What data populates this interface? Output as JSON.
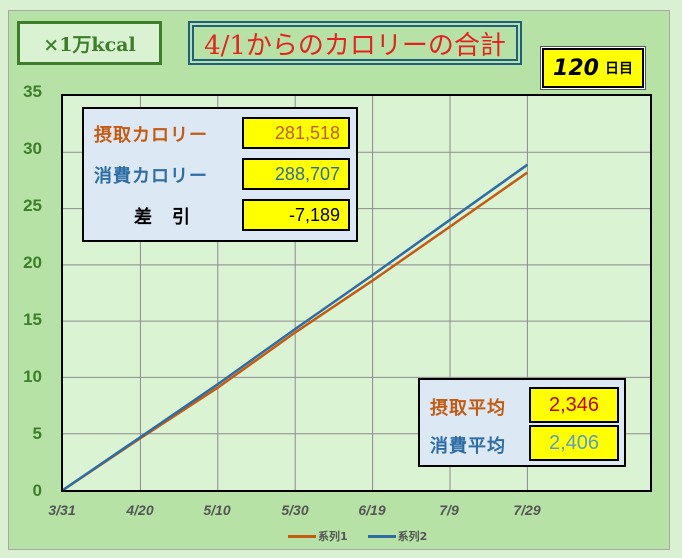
{
  "header": {
    "unit_label": "×1万kcal",
    "title": "4/1からのカロリーの合計",
    "day_count": "120",
    "day_suffix": "日目"
  },
  "summary": {
    "intake_label": "摂取カロリー",
    "intake_value": "281,518",
    "burn_label": "消費カロリー",
    "burn_value": "288,707",
    "diff_label": "差　引",
    "diff_value": "-7,189"
  },
  "averages": {
    "intake_avg_label": "摂取平均",
    "intake_avg_value": "2,346",
    "burn_avg_label": "消費平均",
    "burn_avg_value": "2,406"
  },
  "colors": {
    "series1": "#c55a11",
    "series2": "#2e6da4",
    "intake_text": "#c55a11",
    "burn_text": "#2e6da4",
    "title_text": "#e82020",
    "axis_text": "#3e7e2a",
    "intake_avg_value": "#c00000",
    "burn_avg_value": "#5b9bd5"
  },
  "chart_data": {
    "type": "line",
    "title": "4/1からのカロリーの合計",
    "ylabel": "×1万kcal",
    "xlabel": "",
    "ylim": [
      0,
      35
    ],
    "yticks": [
      0,
      5,
      10,
      15,
      20,
      25,
      30,
      35
    ],
    "xticks": [
      "3/31",
      "4/20",
      "5/10",
      "5/30",
      "6/19",
      "7/9",
      "7/29"
    ],
    "grid": true,
    "legend_position": "bottom",
    "x": [
      "3/31",
      "4/20",
      "5/10",
      "5/30",
      "6/19",
      "7/9",
      "7/29"
    ],
    "series": [
      {
        "name": "系列1",
        "values": [
          0,
          4.6,
          9.1,
          14.0,
          18.6,
          23.4,
          28.2
        ]
      },
      {
        "name": "系列2",
        "values": [
          0,
          4.7,
          9.4,
          14.3,
          19.1,
          24.0,
          28.9
        ]
      }
    ]
  },
  "legend": {
    "series1": "系列1",
    "series2": "系列2"
  }
}
